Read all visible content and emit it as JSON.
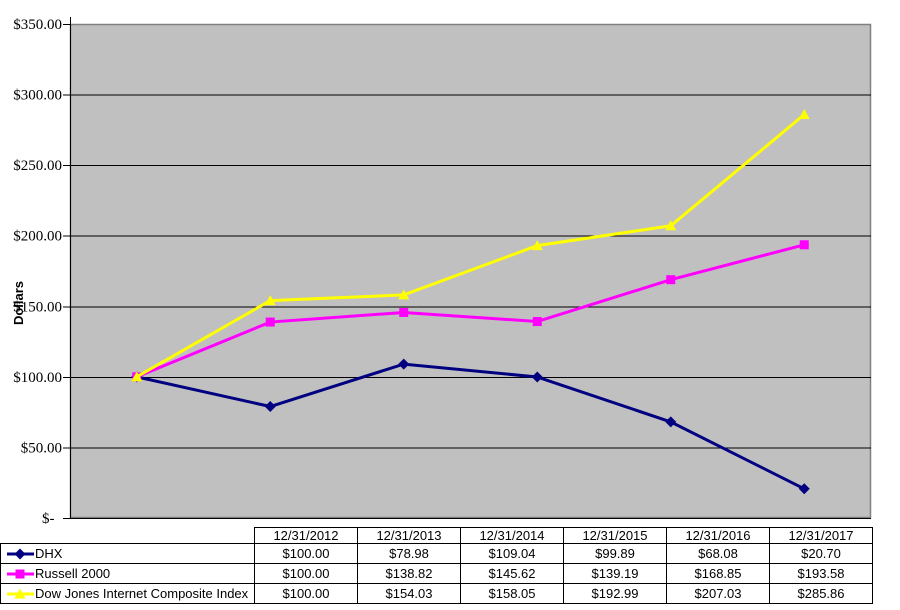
{
  "chart_data": {
    "type": "line",
    "title": "",
    "ylabel": "Dollars",
    "xlabel": "",
    "grid": "horizontal",
    "legend_position": "table-left",
    "ylim": [
      0,
      350
    ],
    "plot_bg_color": "#c0c0c0",
    "plot_border_color": "#808080",
    "grid_color": "#000000",
    "axis_color": "#000000",
    "yticks": [
      {
        "value": 350,
        "label": "$350.00"
      },
      {
        "value": 300,
        "label": "$300.00"
      },
      {
        "value": 250,
        "label": "$250.00"
      },
      {
        "value": 200,
        "label": "$200.00"
      },
      {
        "value": 150,
        "label": "$150.00"
      },
      {
        "value": 100,
        "label": "$100.00"
      },
      {
        "value": 50,
        "label": "$50.00"
      },
      {
        "value": 0,
        "label": "$-  "
      }
    ],
    "categories": [
      "12/31/2012",
      "12/31/2013",
      "12/31/2014",
      "12/31/2015",
      "12/31/2016",
      "12/31/2017"
    ],
    "series": [
      {
        "name": "DHX",
        "color": "#000080",
        "marker": "diamond",
        "values": [
          100.0,
          78.98,
          109.04,
          99.89,
          68.08,
          20.7
        ],
        "labels": [
          "$100.00",
          "$78.98",
          "$109.04",
          "$99.89",
          "$68.08",
          "$20.70"
        ]
      },
      {
        "name": "Russell 2000",
        "color": "#ff00ff",
        "marker": "square",
        "values": [
          100.0,
          138.82,
          145.62,
          139.19,
          168.85,
          193.58
        ],
        "labels": [
          "$100.00",
          "$138.82",
          "$145.62",
          "$139.19",
          "$168.85",
          "$193.58"
        ]
      },
      {
        "name": "Dow Jones Internet Composite Index",
        "color": "#ffff00",
        "marker": "triangle",
        "values": [
          100.0,
          154.03,
          158.05,
          192.99,
          207.03,
          285.86
        ],
        "labels": [
          "$100.00",
          "$154.03",
          "$158.05",
          "$192.99",
          "$207.03",
          "$285.86"
        ]
      }
    ]
  }
}
